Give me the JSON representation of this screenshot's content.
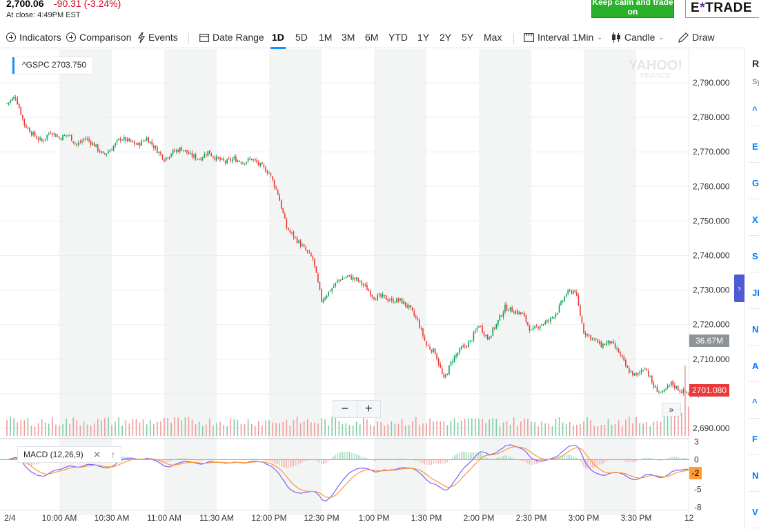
{
  "quote": {
    "price": "2,700.06",
    "change": "-90.31 (-3.24%)",
    "close_time": "At close: 4:49PM EST"
  },
  "ads": {
    "green_text": "Keep calm and trade on",
    "etrade_prefix": "E",
    "etrade_mark": "*",
    "etrade_suffix": "TRADE"
  },
  "toolbar": {
    "indicators": "Indicators",
    "comparison": "Comparison",
    "events": "Events",
    "date_range": "Date Range",
    "ranges": [
      "1D",
      "5D",
      "1M",
      "3M",
      "6M",
      "YTD",
      "1Y",
      "2Y",
      "5Y",
      "Max"
    ],
    "active_range": "1D",
    "interval_label": "Interval",
    "interval_value": "1Min",
    "chart_type": "Candle",
    "draw": "Draw"
  },
  "legend": {
    "symbol": "^GSPC",
    "value": "2703.750"
  },
  "watermark": {
    "line1": "YAHOO!",
    "line2": "FINANCE"
  },
  "price_tags": {
    "volume": "36.67M",
    "last": "2701.080"
  },
  "macd": {
    "label": "MACD (12,26,9)",
    "last_tag": "-2"
  },
  "zoom": {
    "minus": "−",
    "plus": "+"
  },
  "forward": "»",
  "side_panel": {
    "title": "R",
    "subtitle": "Sy",
    "symbols": [
      "^",
      "E",
      "G",
      "X",
      "S",
      "JI",
      "N",
      "A",
      "^",
      "F",
      "N",
      "V"
    ],
    "toggle": "›"
  },
  "colors": {
    "up": "#00a04f",
    "down": "#e53935",
    "macd_line": "#7b61ff",
    "signal_line": "#ff9633",
    "accent": "#188fff"
  },
  "chart_data": {
    "type": "candlestick",
    "title": "",
    "y_axis": {
      "ticks": [
        2690,
        2700,
        2710,
        2720,
        2730,
        2740,
        2750,
        2760,
        2770,
        2780,
        2790
      ],
      "range": [
        2686,
        2796
      ],
      "format": "0.000"
    },
    "x_axis": {
      "labels": [
        "2/4",
        "10:00 AM",
        "10:30 AM",
        "11:00 AM",
        "11:30 AM",
        "12:00 PM",
        "12:30 PM",
        "1:00 PM",
        "1:30 PM",
        "2:00 PM",
        "2:30 PM",
        "3:00 PM",
        "3:30 PM",
        "12"
      ]
    },
    "close_path": [
      [
        "9:30",
        2784
      ],
      [
        "9:35",
        2786
      ],
      [
        "9:40",
        2778
      ],
      [
        "9:45",
        2775
      ],
      [
        "9:50",
        2773
      ],
      [
        "9:55",
        2776
      ],
      [
        "10:00",
        2774
      ],
      [
        "10:05",
        2775
      ],
      [
        "10:10",
        2772
      ],
      [
        "10:15",
        2774
      ],
      [
        "10:20",
        2772
      ],
      [
        "10:25",
        2769
      ],
      [
        "10:30",
        2771
      ],
      [
        "10:35",
        2774
      ],
      [
        "10:40",
        2773
      ],
      [
        "10:45",
        2772
      ],
      [
        "10:50",
        2774
      ],
      [
        "10:55",
        2771
      ],
      [
        "11:00",
        2768
      ],
      [
        "11:05",
        2770
      ],
      [
        "11:10",
        2771
      ],
      [
        "11:15",
        2769
      ],
      [
        "11:20",
        2768
      ],
      [
        "11:25",
        2770
      ],
      [
        "11:30",
        2768
      ],
      [
        "11:35",
        2767
      ],
      [
        "11:40",
        2768
      ],
      [
        "11:45",
        2767
      ],
      [
        "11:50",
        2768
      ],
      [
        "11:55",
        2766
      ],
      [
        "12:00",
        2764
      ],
      [
        "12:05",
        2758
      ],
      [
        "12:10",
        2748
      ],
      [
        "12:15",
        2745
      ],
      [
        "12:20",
        2742
      ],
      [
        "12:25",
        2739
      ],
      [
        "12:30",
        2727
      ],
      [
        "12:35",
        2730
      ],
      [
        "12:40",
        2733
      ],
      [
        "12:45",
        2734
      ],
      [
        "12:50",
        2733
      ],
      [
        "12:55",
        2731
      ],
      [
        "13:00",
        2728
      ],
      [
        "13:05",
        2728
      ],
      [
        "13:10",
        2727
      ],
      [
        "13:15",
        2727
      ],
      [
        "13:20",
        2725
      ],
      [
        "13:25",
        2721
      ],
      [
        "13:30",
        2714
      ],
      [
        "13:35",
        2712
      ],
      [
        "13:40",
        2704
      ],
      [
        "13:45",
        2710
      ],
      [
        "13:50",
        2713
      ],
      [
        "13:55",
        2715
      ],
      [
        "14:00",
        2720
      ],
      [
        "14:05",
        2716
      ],
      [
        "14:10",
        2720
      ],
      [
        "14:15",
        2725
      ],
      [
        "14:20",
        2724
      ],
      [
        "14:25",
        2723
      ],
      [
        "14:30",
        2718
      ],
      [
        "14:35",
        2720
      ],
      [
        "14:40",
        2721
      ],
      [
        "14:45",
        2724
      ],
      [
        "14:50",
        2729
      ],
      [
        "14:55",
        2730
      ],
      [
        "15:00",
        2718
      ],
      [
        "15:05",
        2716
      ],
      [
        "15:10",
        2714
      ],
      [
        "15:15",
        2715
      ],
      [
        "15:20",
        2712
      ],
      [
        "15:25",
        2707
      ],
      [
        "15:30",
        2705
      ],
      [
        "15:35",
        2708
      ],
      [
        "15:40",
        2702
      ],
      [
        "15:45",
        2700
      ],
      [
        "15:50",
        2703
      ],
      [
        "15:55",
        2701
      ],
      [
        "16:00",
        2700
      ]
    ],
    "macd_panel": {
      "ticks": [
        3,
        0,
        -2,
        -5,
        -8
      ],
      "range": [
        -8.5,
        3.5
      ]
    },
    "volume_note": "36.67M latest"
  }
}
